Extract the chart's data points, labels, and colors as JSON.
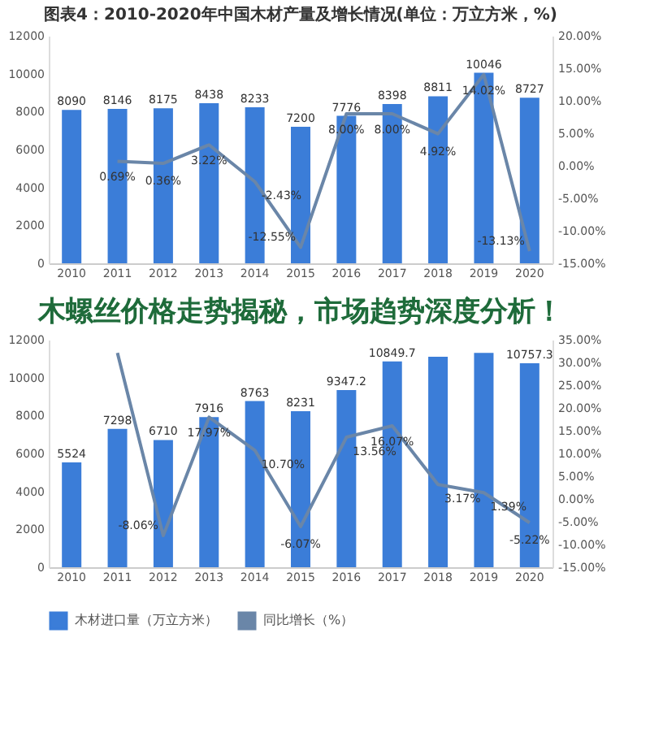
{
  "chart_data": [
    {
      "type": "bar",
      "title": "图表4：2010-2020年中国木材产量及增长情况(单位：万立方米，%)",
      "categories": [
        "2010",
        "2011",
        "2012",
        "2013",
        "2014",
        "2015",
        "2016",
        "2017",
        "2018",
        "2019",
        "2020"
      ],
      "series": [
        {
          "type": "bar",
          "color": "#3b7dd8",
          "values": [
            8090,
            8146,
            8175,
            8438,
            8233,
            7200,
            7776,
            8398,
            8811,
            10046,
            8727
          ],
          "value_labels": [
            "8090",
            "8146",
            "8175",
            "8438",
            "8233",
            "7200",
            "7776",
            "8398",
            "8811",
            "10046",
            "8727"
          ]
        },
        {
          "type": "line",
          "axis": "y2",
          "color": "#6a86a8",
          "values": [
            null,
            0.69,
            0.36,
            3.22,
            -2.43,
            -12.55,
            8.0,
            8.0,
            4.92,
            14.02,
            -13.13
          ],
          "value_labels": [
            null,
            "0.69%",
            "0.36%",
            "3.22%",
            "-2.43%",
            "-12.55%",
            "8.00%",
            "8.00%",
            "4.92%",
            "14.02%",
            "-13.13%"
          ]
        }
      ],
      "ylim": [
        0,
        12000
      ],
      "yticks": [
        0,
        2000,
        4000,
        6000,
        8000,
        10000,
        12000
      ],
      "y2lim": [
        -15,
        20
      ],
      "y2ticks": [
        {
          "value": -15,
          "label": "-15.00%"
        },
        {
          "value": -10,
          "label": "-10.00%"
        },
        {
          "value": -5,
          "label": "-5.00%"
        },
        {
          "value": 0,
          "label": "0.00%"
        },
        {
          "value": 5,
          "label": "5.00%"
        },
        {
          "value": 10,
          "label": "10.00%"
        },
        {
          "value": 15,
          "label": "15.00%"
        },
        {
          "value": 20,
          "label": "20.00%"
        }
      ],
      "legend": false,
      "grid": false,
      "marker": "none",
      "line_style": "solid"
    },
    {
      "type": "bar",
      "title": "木螺丝价格走势揭秘，市场趋势深度分析！",
      "categories": [
        "2010",
        "2011",
        "2012",
        "2013",
        "2014",
        "2015",
        "2016",
        "2017",
        "2018",
        "2019",
        "2020"
      ],
      "series": [
        {
          "type": "bar",
          "name": "木材进口量（万立方米）",
          "color": "#3b7dd8",
          "values": [
            5524,
            7298,
            6710,
            7916,
            8763,
            8231,
            9347.2,
            10849.7,
            11100,
            11300,
            10757.3
          ],
          "value_labels": [
            "5524",
            "7298",
            "6710",
            "7916",
            "8763",
            "8231",
            "9347.2",
            "10849.7",
            null,
            null,
            "10757.3"
          ]
        },
        {
          "type": "line",
          "name": "同比增长（%）",
          "axis": "y2",
          "color": "#6a86a8",
          "values": [
            null,
            32.1,
            -8.06,
            17.97,
            10.7,
            -6.07,
            13.56,
            16.07,
            3.17,
            1.39,
            -5.22
          ],
          "value_labels": [
            null,
            null,
            "-8.06%",
            "17.97%",
            "10.70%",
            "-6.07%",
            "13.56%",
            "16.07%",
            "3.17%",
            "1.39%",
            "-5.22%"
          ]
        }
      ],
      "ylim": [
        0,
        12000
      ],
      "yticks": [
        0,
        2000,
        4000,
        6000,
        8000,
        10000,
        12000
      ],
      "y2lim": [
        -15,
        35
      ],
      "y2ticks": [
        {
          "value": -15,
          "label": "-15.00%"
        },
        {
          "value": -10,
          "label": "-10.00%"
        },
        {
          "value": -5,
          "label": "-5.00%"
        },
        {
          "value": 0,
          "label": "0.00%"
        },
        {
          "value": 5,
          "label": "5.00%"
        },
        {
          "value": 10,
          "label": "10.00%"
        },
        {
          "value": 15,
          "label": "15.00%"
        },
        {
          "value": 20,
          "label": "20.00%"
        },
        {
          "value": 25,
          "label": "25.00%"
        },
        {
          "value": 30,
          "label": "30.00%"
        },
        {
          "value": 35,
          "label": "35.00%"
        }
      ],
      "legend": "bottom",
      "grid": false,
      "marker": "none",
      "line_style": "solid"
    }
  ]
}
